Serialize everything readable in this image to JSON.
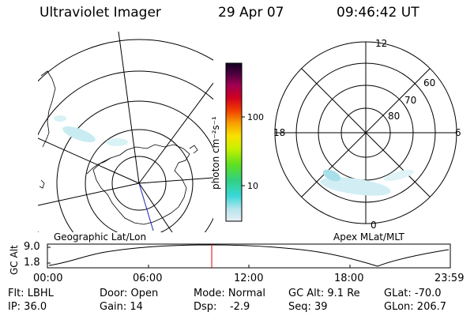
{
  "header": {
    "instrument": "Ultraviolet Imager",
    "date": "29 Apr 07",
    "time": "09:46:42 UT"
  },
  "left_map": {
    "label": "Geographic Lat/Lon"
  },
  "right_map": {
    "label": "Apex MLat/MLT",
    "mlt_labels": {
      "top": "12",
      "left": "18",
      "right": "6",
      "bottom": "0"
    },
    "lat_labels": [
      "60",
      "70",
      "80"
    ]
  },
  "colorbar": {
    "unit_label": "photon cm⁻²s⁻¹",
    "ticks": [
      "100",
      "10"
    ]
  },
  "altitude_plot": {
    "ylabel": "GC Alt",
    "yticks": [
      "9.0",
      "1.8"
    ],
    "xticks": [
      "00:00",
      "06:00",
      "12:00",
      "18:00",
      "23:59"
    ],
    "marker_color": "#e00000"
  },
  "status": {
    "row1": {
      "filter": "Flt: LBHL",
      "door": "Door: Open",
      "mode": "Mode: Normal",
      "gc_alt": "GC Alt: 9.1 Re",
      "glat": "GLat: -70.0"
    },
    "row2": {
      "ip": "IP: 36.0",
      "gain": "Gain: 14",
      "dsp": "Dsp:    -2.9",
      "seq": "Seq: 39",
      "glon": "GLon: 206.7"
    }
  }
}
